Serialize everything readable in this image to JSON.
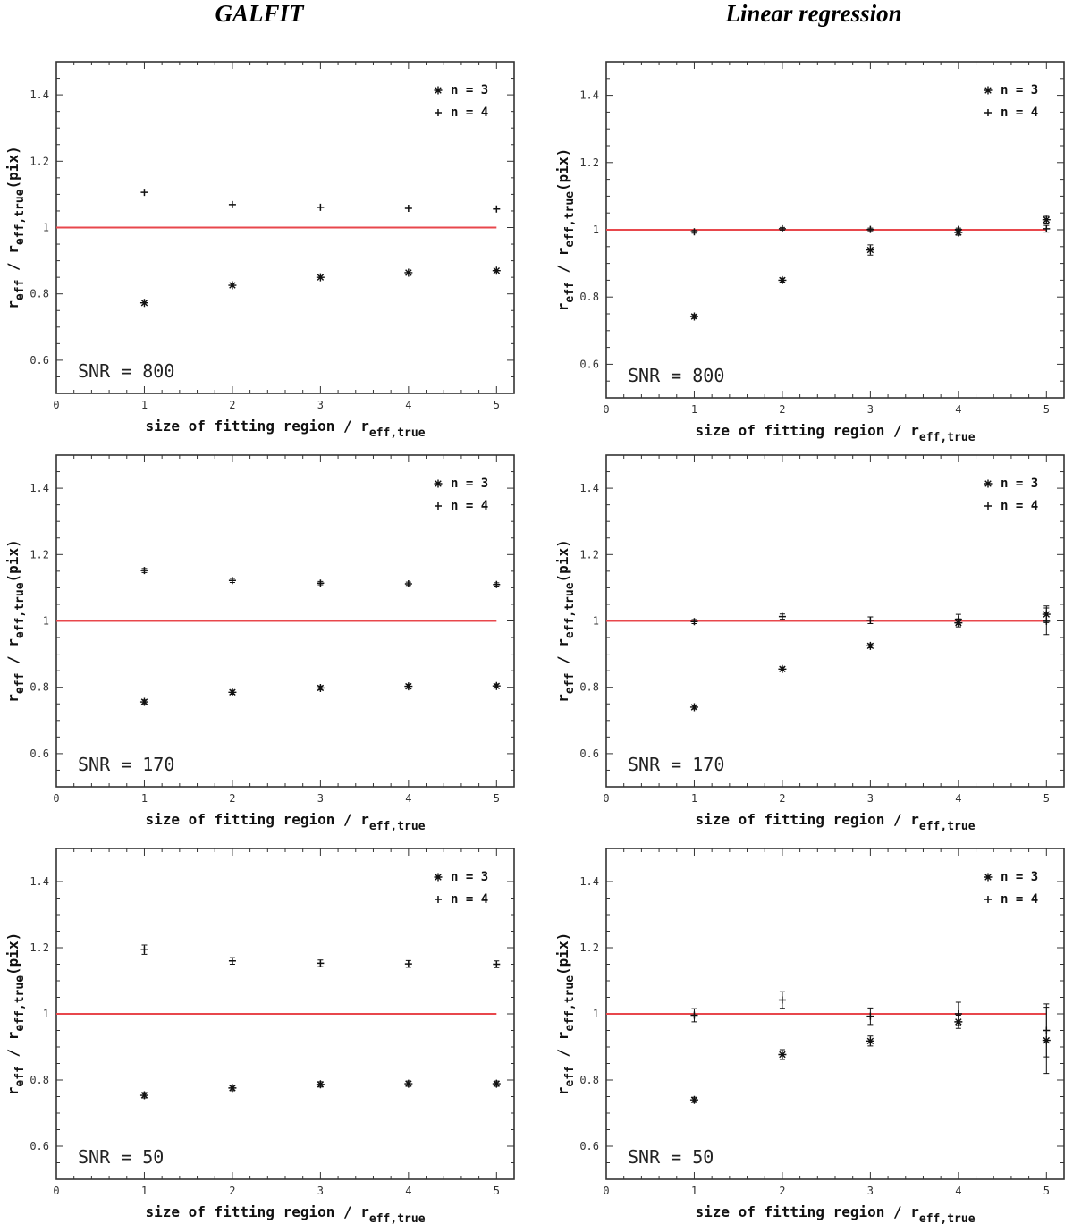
{
  "titles": {
    "left": "GALFIT",
    "right": "Linear regression"
  },
  "colors": {
    "reference_line": "#e8474c",
    "markers": "#111111",
    "frame": "#333333"
  },
  "chart_data": [
    {
      "id": "galfit-snr800",
      "type": "scatter",
      "title": "GALFIT",
      "annotation": "SNR = 800",
      "xlabel": "size of fitting region / r_eff,true",
      "ylabel": "r_eff / r_eff,true (pix)",
      "xlim": [
        0,
        5.2
      ],
      "ylim": [
        0.5,
        1.5
      ],
      "xticks": [
        0,
        1,
        2,
        3,
        4,
        5
      ],
      "yticks": [
        0.6,
        0.8,
        1,
        1.2,
        1.4
      ],
      "reference_line": 1,
      "legend": [
        {
          "name": "n = 3",
          "marker": "asterisk"
        },
        {
          "name": "n = 4",
          "marker": "plus"
        }
      ],
      "series": [
        {
          "name": "n = 3",
          "marker": "asterisk",
          "x": [
            1,
            2,
            3,
            4,
            5
          ],
          "y": [
            0.773,
            0.826,
            0.85,
            0.864,
            0.87
          ],
          "err": [
            0.004,
            0.004,
            0.004,
            0.004,
            0.004
          ]
        },
        {
          "name": "n = 4",
          "marker": "plus",
          "x": [
            1,
            2,
            3,
            4,
            5
          ],
          "y": [
            1.106,
            1.069,
            1.061,
            1.058,
            1.056
          ],
          "err": [
            0.004,
            0.004,
            0.003,
            0.003,
            0.003
          ]
        }
      ]
    },
    {
      "id": "linreg-snr800",
      "type": "scatter",
      "title": "Linear regression",
      "annotation": "SNR = 800",
      "xlabel": "size of fitting region / r_eff,true",
      "ylabel": "r_eff / r_eff,true (pix)",
      "xlim": [
        0,
        5.2
      ],
      "ylim": [
        0.5,
        1.5
      ],
      "xticks": [
        0,
        1,
        2,
        3,
        4,
        5
      ],
      "yticks": [
        0.6,
        0.8,
        1,
        1.2,
        1.4
      ],
      "reference_line": 1,
      "legend": [
        {
          "name": "n = 3",
          "marker": "asterisk"
        },
        {
          "name": "n = 4",
          "marker": "plus"
        }
      ],
      "series": [
        {
          "name": "n = 3",
          "marker": "asterisk",
          "x": [
            1,
            2,
            3,
            4,
            5
          ],
          "y": [
            0.742,
            0.85,
            0.94,
            0.992,
            1.03
          ],
          "err": [
            0.006,
            0.006,
            0.015,
            0.008,
            0.01
          ]
        },
        {
          "name": "n = 4",
          "marker": "plus",
          "x": [
            1,
            2,
            3,
            4,
            5
          ],
          "y": [
            0.994,
            1.003,
            1.001,
            1.001,
            1.003
          ],
          "err": [
            0.004,
            0.004,
            0.004,
            0.004,
            0.01
          ]
        }
      ]
    },
    {
      "id": "galfit-snr170",
      "type": "scatter",
      "title": "GALFIT",
      "annotation": "SNR = 170",
      "xlabel": "size of fitting region / r_eff,true",
      "ylabel": "r_eff / r_eff,true (pix)",
      "xlim": [
        0,
        5.2
      ],
      "ylim": [
        0.5,
        1.5
      ],
      "xticks": [
        0,
        1,
        2,
        3,
        4,
        5
      ],
      "yticks": [
        0.6,
        0.8,
        1,
        1.2,
        1.4
      ],
      "reference_line": 1,
      "legend": [
        {
          "name": "n = 3",
          "marker": "asterisk"
        },
        {
          "name": "n = 4",
          "marker": "plus"
        }
      ],
      "series": [
        {
          "name": "n = 3",
          "marker": "asterisk",
          "x": [
            1,
            2,
            3,
            4,
            5
          ],
          "y": [
            0.756,
            0.785,
            0.798,
            0.803,
            0.804
          ],
          "err": [
            0.006,
            0.006,
            0.006,
            0.006,
            0.006
          ]
        },
        {
          "name": "n = 4",
          "marker": "plus",
          "x": [
            1,
            2,
            3,
            4,
            5
          ],
          "y": [
            1.152,
            1.122,
            1.114,
            1.112,
            1.11
          ],
          "err": [
            0.006,
            0.006,
            0.005,
            0.005,
            0.005
          ]
        }
      ]
    },
    {
      "id": "linreg-snr170",
      "type": "scatter",
      "title": "Linear regression",
      "annotation": "SNR = 170",
      "xlabel": "size of fitting region / r_eff,true",
      "ylabel": "r_eff / r_eff,true (pix)",
      "xlim": [
        0,
        5.2
      ],
      "ylim": [
        0.5,
        1.5
      ],
      "xticks": [
        0,
        1,
        2,
        3,
        4,
        5
      ],
      "yticks": [
        0.6,
        0.8,
        1,
        1.2,
        1.4
      ],
      "reference_line": 1,
      "legend": [
        {
          "name": "n = 3",
          "marker": "asterisk"
        },
        {
          "name": "n = 4",
          "marker": "plus"
        }
      ],
      "series": [
        {
          "name": "n = 3",
          "marker": "asterisk",
          "x": [
            1,
            2,
            3,
            4,
            5
          ],
          "y": [
            0.74,
            0.855,
            0.925,
            0.994,
            1.02
          ],
          "err": [
            0.006,
            0.006,
            0.006,
            0.012,
            0.025
          ]
        },
        {
          "name": "n = 4",
          "marker": "plus",
          "x": [
            1,
            2,
            3,
            4,
            5
          ],
          "y": [
            0.998,
            1.013,
            1.002,
            1.005,
            0.999
          ],
          "err": [
            0.006,
            0.008,
            0.01,
            0.015,
            0.04
          ]
        }
      ]
    },
    {
      "id": "galfit-snr50",
      "type": "scatter",
      "title": "GALFIT",
      "annotation": "SNR = 50",
      "xlabel": "size of fitting region / r_eff,true",
      "ylabel": "r_eff / r_eff,true (pix)",
      "xlim": [
        0,
        5.2
      ],
      "ylim": [
        0.5,
        1.5
      ],
      "xticks": [
        0,
        1,
        2,
        3,
        4,
        5
      ],
      "yticks": [
        0.6,
        0.8,
        1,
        1.2,
        1.4
      ],
      "reference_line": 1,
      "legend": [
        {
          "name": "n = 3",
          "marker": "asterisk"
        },
        {
          "name": "n = 4",
          "marker": "plus"
        }
      ],
      "series": [
        {
          "name": "n = 3",
          "marker": "asterisk",
          "x": [
            1,
            2,
            3,
            4,
            5
          ],
          "y": [
            0.754,
            0.776,
            0.787,
            0.789,
            0.789
          ],
          "err": [
            0.008,
            0.008,
            0.008,
            0.008,
            0.008
          ]
        },
        {
          "name": "n = 4",
          "marker": "plus",
          "x": [
            1,
            2,
            3,
            4,
            5
          ],
          "y": [
            1.194,
            1.16,
            1.153,
            1.151,
            1.15
          ],
          "err": [
            0.014,
            0.01,
            0.01,
            0.01,
            0.01
          ]
        }
      ]
    },
    {
      "id": "linreg-snr50",
      "type": "scatter",
      "title": "Linear regression",
      "annotation": "SNR = 50",
      "xlabel": "size of fitting region / r_eff,true",
      "ylabel": "r_eff / r_eff,true (pix)",
      "xlim": [
        0,
        5.2
      ],
      "ylim": [
        0.5,
        1.5
      ],
      "xticks": [
        0,
        1,
        2,
        3,
        4,
        5
      ],
      "yticks": [
        0.6,
        0.8,
        1,
        1.2,
        1.4
      ],
      "reference_line": 1,
      "legend": [
        {
          "name": "n = 3",
          "marker": "asterisk"
        },
        {
          "name": "n = 4",
          "marker": "plus"
        }
      ],
      "series": [
        {
          "name": "n = 3",
          "marker": "asterisk",
          "x": [
            1,
            2,
            3,
            4,
            5
          ],
          "y": [
            0.74,
            0.877,
            0.918,
            0.976,
            0.92
          ],
          "err": [
            0.008,
            0.015,
            0.015,
            0.02,
            0.1
          ]
        },
        {
          "name": "n = 4",
          "marker": "plus",
          "x": [
            1,
            2,
            3,
            4,
            5
          ],
          "y": [
            0.996,
            1.042,
            0.993,
            1.0,
            0.95
          ],
          "err": [
            0.02,
            0.025,
            0.025,
            0.035,
            0.08
          ]
        }
      ]
    }
  ]
}
